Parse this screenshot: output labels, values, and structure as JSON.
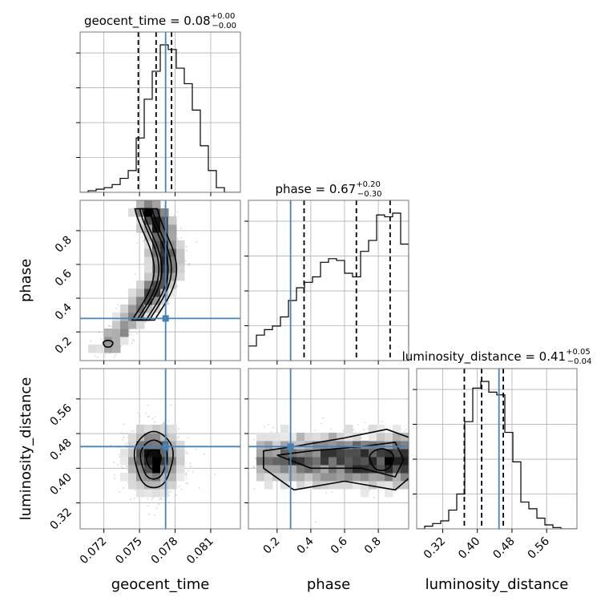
{
  "chart_data": {
    "type": "corner",
    "parameters": [
      "geocent_time",
      "phase",
      "luminosity_distance"
    ],
    "truths": {
      "geocent_time": 0.0772,
      "phase": 0.28,
      "luminosity_distance": 0.45
    },
    "colors": {
      "truth": "#4682b4",
      "hist": "#000000",
      "grid": "#b0b0b0",
      "points": "#808080"
    },
    "titles": [
      {
        "param": "geocent_time",
        "text": "geocent_time = 0.08",
        "upper": "+0.00",
        "lower": "−0.00"
      },
      {
        "param": "phase",
        "text": "phase = 0.67",
        "upper": "+0.20",
        "lower": "−0.30"
      },
      {
        "param": "luminosity_distance",
        "text": "luminosity_distance = 0.41",
        "upper": "+0.05",
        "lower": "−0.04"
      }
    ],
    "axes": {
      "geocent_time": {
        "label": "geocent_time",
        "range": [
          0.07,
          0.0835
        ],
        "ticks": [
          0.072,
          0.075,
          0.078,
          0.081
        ],
        "tick_labels": [
          "0.072",
          "0.075",
          "0.078",
          "0.081"
        ]
      },
      "phase": {
        "label": "phase",
        "range": [
          0.03,
          0.98
        ],
        "ticks": [
          0.2,
          0.4,
          0.6,
          0.8
        ],
        "tick_labels": [
          "0.2",
          "0.4",
          "0.6",
          "0.8"
        ]
      },
      "luminosity_distance": {
        "label": "luminosity_distance",
        "range": [
          0.26,
          0.63
        ],
        "ticks": [
          0.32,
          0.4,
          0.48,
          0.56
        ],
        "tick_labels": [
          "0.32",
          "0.40",
          "0.48",
          "0.56"
        ]
      }
    },
    "quantiles": {
      "geocent_time": [
        0.0749,
        0.0764,
        0.0777
      ],
      "phase": [
        0.36,
        0.67,
        0.87
      ],
      "luminosity_distance": [
        0.37,
        0.41,
        0.46
      ]
    },
    "histograms": {
      "geocent_time": {
        "edges_range": [
          0.07,
          0.0835
        ],
        "counts": [
          0,
          1,
          2,
          3,
          5,
          9,
          14,
          35,
          60,
          78,
          95,
          92,
          80,
          70,
          53,
          30,
          14,
          3,
          0,
          0
        ]
      },
      "phase": {
        "edges_range": [
          0.03,
          0.98
        ],
        "counts": [
          8,
          14,
          17,
          19,
          24,
          33,
          40,
          43,
          46,
          54,
          56,
          55,
          48,
          46,
          60,
          66,
          80,
          79,
          81,
          64
        ]
      },
      "luminosity_distance": {
        "edges_range": [
          0.26,
          0.63
        ],
        "counts": [
          0,
          2,
          4,
          6,
          14,
          26,
          80,
          105,
          110,
          102,
          100,
          72,
          50,
          20,
          15,
          8,
          3,
          1,
          0,
          0
        ]
      }
    },
    "grid": true
  }
}
